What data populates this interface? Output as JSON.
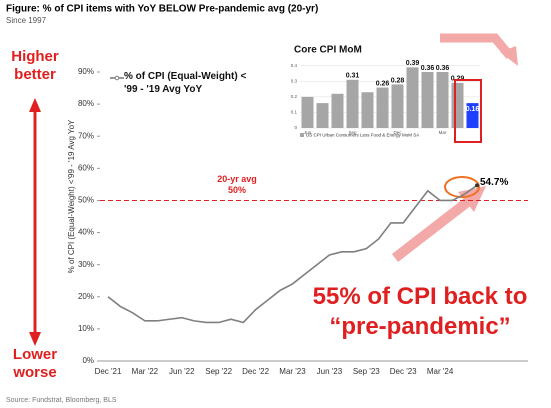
{
  "title": "Figure: % of CPI items with YoY BELOW Pre-pandemic avg (20-yr)",
  "subtitle": "Since 1997",
  "left_top": "Higher better",
  "left_bottom": "Lower worse",
  "callout": "55% of CPI back to “pre-pandemic”",
  "source": "Source: Fundstrat, Bloomberg, BLS",
  "chart_data": [
    {
      "type": "line",
      "ylabel": "% of CPI (Equal-Weight) <'99 - '19 Avg YoY",
      "categories": [
        "Dec '21",
        null,
        null,
        "Mar '22",
        null,
        null,
        "Jun '22",
        null,
        null,
        "Sep '22",
        null,
        null,
        "Dec '22",
        null,
        null,
        "Mar '23",
        null,
        null,
        "Jun '23",
        null,
        null,
        "Sep '23",
        null,
        null,
        "Dec '23",
        null,
        null,
        "Mar '24",
        null,
        null,
        null
      ],
      "series": [
        {
          "name": "% of CPI (Equal-Weight) < '99 - '19 Avg YoY",
          "color": "#7f7f7f",
          "values": [
            20,
            17,
            15,
            12.5,
            12.5,
            13,
            13.5,
            12.5,
            12,
            12,
            13,
            12,
            16,
            19,
            22,
            24,
            27,
            30,
            33,
            34,
            34,
            35,
            38,
            43,
            43,
            48,
            53,
            50,
            50,
            52,
            54.7
          ],
          "value_labels": [
            null,
            null,
            null,
            null,
            null,
            null,
            null,
            null,
            null,
            null,
            null,
            null,
            null,
            null,
            null,
            null,
            null,
            null,
            null,
            null,
            null,
            null,
            null,
            null,
            null,
            null,
            null,
            null,
            null,
            null,
            "54.7%"
          ]
        }
      ],
      "reference_line": {
        "value": 50,
        "label": "20-yr avg",
        "value_label": "50%",
        "color": "#e02020"
      },
      "ylim": [
        0,
        90
      ],
      "yticks": [
        {
          "value": 0,
          "label": "0%"
        },
        {
          "value": 10,
          "label": "10%"
        },
        {
          "value": 20,
          "label": "20%"
        },
        {
          "value": 30,
          "label": "30%"
        },
        {
          "value": 40,
          "label": "40%"
        },
        {
          "value": 50,
          "label": "50%"
        },
        {
          "value": 60,
          "label": "60%"
        },
        {
          "value": 70,
          "label": "70%"
        },
        {
          "value": 80,
          "label": "80%"
        },
        {
          "value": 90,
          "label": "90%"
        }
      ]
    },
    {
      "type": "bar",
      "title": "Core CPI MoM",
      "categories": [
        "Jun",
        null,
        null,
        "Sep",
        null,
        null,
        "Dec",
        null,
        null,
        "Mar",
        null,
        null
      ],
      "series": [
        {
          "name": "US CPI Urban Consumers Less Food & Energy MoM SA",
          "color": "#a6a6a6",
          "colors": [
            "#a6a6a6",
            "#a6a6a6",
            "#a6a6a6",
            "#a6a6a6",
            "#a6a6a6",
            "#a6a6a6",
            "#a6a6a6",
            "#a6a6a6",
            "#a6a6a6",
            "#a6a6a6",
            "#a6a6a6",
            "#1f3fff"
          ],
          "values": [
            0.2,
            0.16,
            0.22,
            0.31,
            0.23,
            0.26,
            0.28,
            0.39,
            0.36,
            0.36,
            0.29,
            0.16
          ],
          "value_labels": [
            null,
            null,
            null,
            "0.31",
            null,
            "0.26",
            "0.28",
            "0.39",
            "0.36",
            "0.36",
            "0.29",
            "0.16"
          ]
        }
      ],
      "ylim": [
        0,
        0.45
      ],
      "yticks": [
        0,
        0.1,
        0.2,
        0.3,
        0.4
      ]
    }
  ]
}
